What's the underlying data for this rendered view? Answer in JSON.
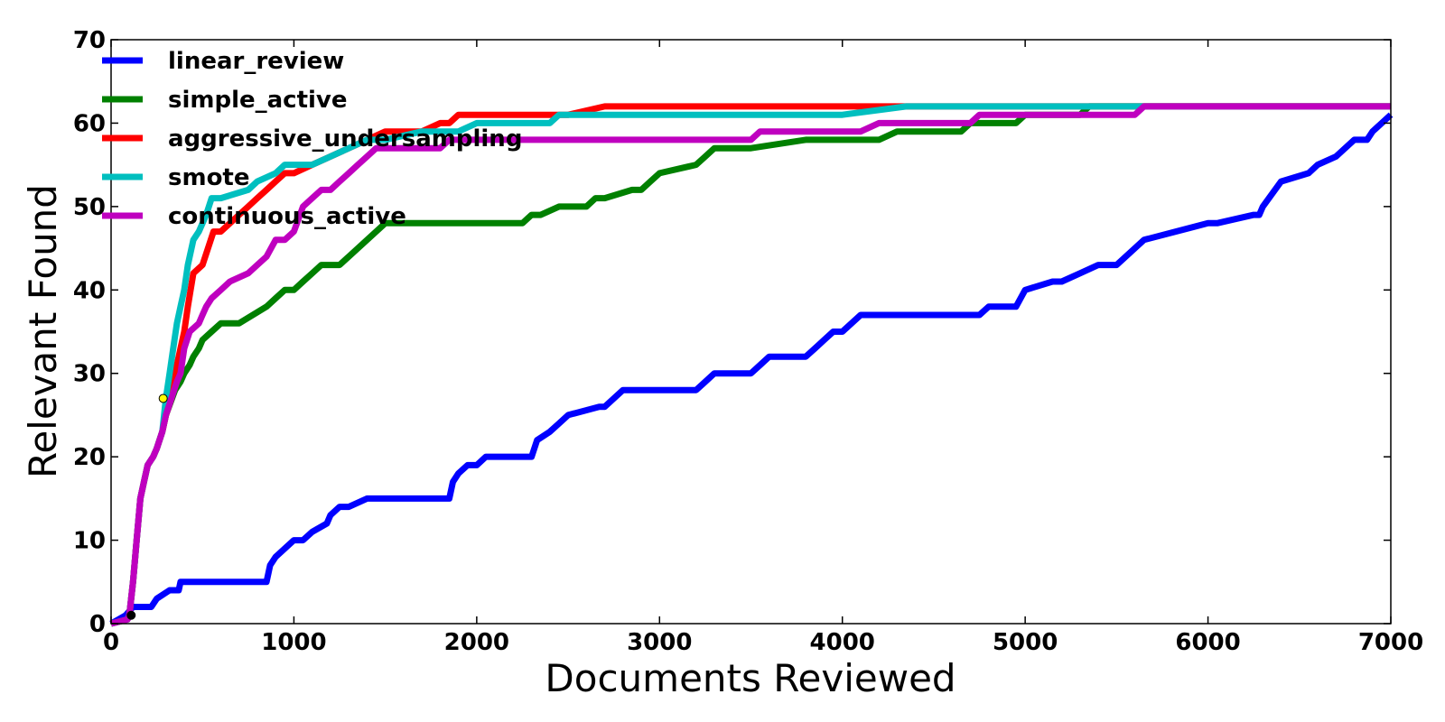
{
  "chart_data": {
    "type": "line",
    "title": "",
    "xlabel": "Documents Reviewed",
    "ylabel": "Relevant Found",
    "xlim": [
      0,
      7000
    ],
    "ylim": [
      0,
      70
    ],
    "xticks": [
      "0",
      "1000",
      "2000",
      "3000",
      "4000",
      "5000",
      "6000",
      "7000"
    ],
    "yticks": [
      "0",
      "10",
      "20",
      "30",
      "40",
      "50",
      "60",
      "70"
    ],
    "grid": false,
    "legend": "top-left",
    "series": [
      {
        "name": "linear_review",
        "color": "#0000ff",
        "x": [
          0,
          80,
          100,
          120,
          220,
          250,
          320,
          370,
          380,
          850,
          870,
          900,
          950,
          1000,
          1050,
          1100,
          1180,
          1200,
          1250,
          1300,
          1400,
          1450,
          1850,
          1870,
          1900,
          1950,
          2000,
          2050,
          2300,
          2330,
          2400,
          2450,
          2500,
          2670,
          2700,
          2750,
          2800,
          3200,
          3250,
          3300,
          3500,
          3550,
          3600,
          3800,
          3850,
          3900,
          3950,
          4000,
          4100,
          4150,
          4750,
          4800,
          4950,
          5000,
          5150,
          5200,
          5300,
          5400,
          5500,
          5550,
          5600,
          5650,
          6000,
          6050,
          6250,
          6280,
          6300,
          6400,
          6550,
          6600,
          6700,
          6800,
          6870,
          6900,
          6950,
          7000
        ],
        "y": [
          0,
          1,
          1.5,
          2,
          2,
          3,
          4,
          4,
          5,
          5,
          7,
          8,
          9,
          10,
          10,
          11,
          12,
          13,
          14,
          14,
          15,
          15,
          15,
          17,
          18,
          19,
          19,
          20,
          20,
          22,
          23,
          24,
          25,
          26,
          26,
          27,
          28,
          28,
          29,
          30,
          30,
          31,
          32,
          32,
          33,
          34,
          35,
          35,
          37,
          37,
          37,
          38,
          38,
          40,
          41,
          41,
          42,
          43,
          43,
          44,
          45,
          46,
          48,
          48,
          49,
          49,
          50,
          53,
          54,
          55,
          56,
          58,
          58,
          59,
          60,
          61
        ]
      },
      {
        "name": "simple_active",
        "color": "#008000",
        "x": [
          0,
          90,
          100,
          120,
          140,
          160,
          180,
          200,
          230,
          250,
          280,
          300,
          350,
          380,
          400,
          430,
          450,
          480,
          500,
          550,
          600,
          650,
          700,
          850,
          900,
          950,
          1000,
          1050,
          1100,
          1150,
          1250,
          1300,
          1350,
          1400,
          1450,
          1500,
          1550,
          2250,
          2300,
          2350,
          2450,
          2600,
          2650,
          2700,
          2850,
          2900,
          2950,
          3000,
          3200,
          3250,
          3300,
          3500,
          3800,
          3850,
          4200,
          4300,
          4500,
          4650,
          4700,
          4850,
          4950,
          5000,
          5300,
          5350,
          5500,
          5600,
          6000,
          7000
        ],
        "y": [
          0,
          0.5,
          1,
          5,
          10,
          15,
          17,
          19,
          20,
          21,
          23,
          25,
          28,
          29,
          30,
          31,
          32,
          33,
          34,
          35,
          36,
          36,
          36,
          38,
          39,
          40,
          40,
          41,
          42,
          43,
          43,
          44,
          45,
          46,
          47,
          48,
          48,
          48,
          49,
          49,
          50,
          50,
          51,
          51,
          52,
          52,
          53,
          54,
          55,
          56,
          57,
          57,
          58,
          58,
          58,
          59,
          59,
          59,
          60,
          60,
          60,
          61,
          61,
          62,
          62,
          62,
          62,
          62
        ]
      },
      {
        "name": "aggressive_undersampling",
        "color": "#ff0000",
        "x": [
          0,
          90,
          100,
          120,
          140,
          160,
          180,
          200,
          230,
          250,
          280,
          300,
          330,
          350,
          380,
          400,
          420,
          450,
          500,
          530,
          560,
          600,
          700,
          750,
          800,
          850,
          900,
          950,
          1000,
          1100,
          1200,
          1300,
          1400,
          1500,
          1600,
          1700,
          1800,
          1850,
          1900,
          1950,
          2100,
          2300,
          2500,
          2700,
          3000,
          4000,
          4500,
          5000,
          5600,
          7000
        ],
        "y": [
          0,
          0.5,
          1,
          5,
          10,
          15,
          17,
          19,
          20,
          21,
          23,
          25,
          27,
          30,
          33,
          35,
          38,
          42,
          43,
          45,
          47,
          47,
          49,
          50,
          51,
          52,
          53,
          54,
          54,
          55,
          56,
          57,
          58,
          59,
          59,
          59,
          60,
          60,
          61,
          61,
          61,
          61,
          61,
          62,
          62,
          62,
          62,
          62,
          62,
          62
        ]
      },
      {
        "name": "smote",
        "color": "#00bfbf",
        "x": [
          0,
          90,
          100,
          120,
          140,
          160,
          180,
          200,
          230,
          250,
          280,
          300,
          320,
          340,
          360,
          380,
          400,
          420,
          450,
          480,
          520,
          550,
          600,
          750,
          800,
          900,
          950,
          1000,
          1100,
          1200,
          1300,
          1400,
          1500,
          1700,
          1900,
          2000,
          2400,
          2450,
          3000,
          4000,
          4350,
          5000,
          5600,
          7000
        ],
        "y": [
          0,
          0.5,
          1,
          5,
          10,
          15,
          17,
          19,
          20,
          21,
          23,
          27,
          30,
          33,
          36,
          38,
          40,
          43,
          46,
          47,
          49,
          51,
          51,
          52,
          53,
          54,
          55,
          55,
          55,
          56,
          57,
          58,
          58,
          59,
          59,
          60,
          60,
          61,
          61,
          61,
          62,
          62,
          62,
          62
        ]
      },
      {
        "name": "continuous_active",
        "color": "#bf00bf",
        "x": [
          0,
          90,
          100,
          120,
          140,
          160,
          180,
          200,
          230,
          250,
          280,
          300,
          330,
          360,
          380,
          400,
          430,
          480,
          500,
          520,
          550,
          600,
          650,
          750,
          800,
          850,
          900,
          950,
          1000,
          1050,
          1100,
          1150,
          1200,
          1250,
          1300,
          1350,
          1400,
          1450,
          1500,
          1600,
          1800,
          1850,
          2000,
          3000,
          3500,
          3550,
          4000,
          4100,
          4200,
          4700,
          4750,
          5000,
          5500,
          5600,
          5650,
          6000,
          7000
        ],
        "y": [
          0,
          0.5,
          1,
          5,
          10,
          15,
          17,
          19,
          20,
          21,
          23,
          25,
          27,
          29,
          30,
          33,
          35,
          36,
          37,
          38,
          39,
          40,
          41,
          42,
          43,
          44,
          46,
          46,
          47,
          50,
          51,
          52,
          52,
          53,
          54,
          55,
          56,
          57,
          57,
          57,
          57,
          58,
          58,
          58,
          58,
          59,
          59,
          59,
          60,
          60,
          61,
          61,
          61,
          61,
          62,
          62,
          62
        ]
      }
    ],
    "markers": [
      {
        "x": 110,
        "y": 1,
        "color": "#000000"
      },
      {
        "x": 285,
        "y": 27,
        "color": "#ffff00"
      }
    ]
  }
}
